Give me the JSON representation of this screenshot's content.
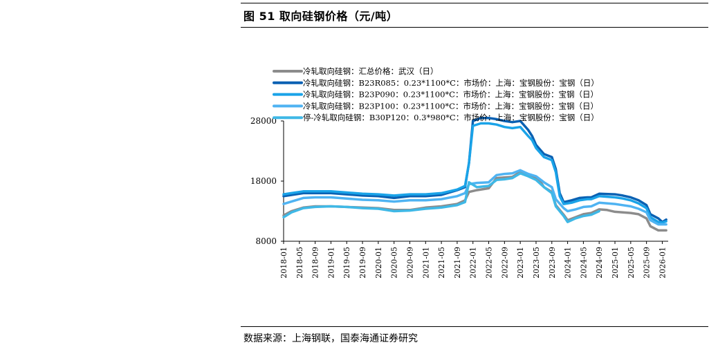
{
  "figure_title": "图 51 取向硅钢价格（元/吨）",
  "source_note": "数据来源：上海钢联，国泰海通证券研究",
  "colors": {
    "gray": "#8c8c8c",
    "darkblue": "#0a61b3",
    "blue": "#1aa3e8",
    "lightblue": "#4fb3f2",
    "skyblue": "#3fb8e6"
  },
  "chart_data": {
    "type": "line",
    "x_tick_labels": [
      "2018-01",
      "2018-05",
      "2018-09",
      "2019-01",
      "2019-05",
      "2019-09",
      "2020-01",
      "2020-05",
      "2020-09",
      "2021-01",
      "2021-05",
      "2021-09",
      "2022-01",
      "2022-05",
      "2022-09",
      "2023-01",
      "2023-05",
      "2023-09",
      "2024-01",
      "2024-05",
      "2024-09",
      "2025-01",
      "2025-05",
      "2025-09",
      "2026-01"
    ],
    "y_ticks": [
      8000,
      18000,
      28000
    ],
    "ylim": [
      8000,
      28000
    ],
    "legend_position": "top-left",
    "grid": false,
    "series": [
      {
        "name": "冷轧取向硅钢：汇总价格：武汉（日）",
        "color_key": "gray",
        "points": [
          [
            "2018-01",
            12300
          ],
          [
            "2018-03",
            13000
          ],
          [
            "2018-06",
            13600
          ],
          [
            "2018-09",
            13800
          ],
          [
            "2019-01",
            13800
          ],
          [
            "2019-05",
            13700
          ],
          [
            "2019-09",
            13600
          ],
          [
            "2020-01",
            13500
          ],
          [
            "2020-05",
            13200
          ],
          [
            "2020-09",
            13200
          ],
          [
            "2021-01",
            13600
          ],
          [
            "2021-05",
            13800
          ],
          [
            "2021-09",
            14200
          ],
          [
            "2021-11",
            14800
          ],
          [
            "2021-12",
            16200
          ],
          [
            "2022-02",
            16500
          ],
          [
            "2022-05",
            16800
          ],
          [
            "2022-07",
            18500
          ],
          [
            "2022-09",
            18600
          ],
          [
            "2022-11",
            18700
          ],
          [
            "2023-01",
            19500
          ],
          [
            "2023-03",
            19000
          ],
          [
            "2023-05",
            18500
          ],
          [
            "2023-06",
            18000
          ],
          [
            "2023-07",
            17000
          ],
          [
            "2023-09",
            16200
          ],
          [
            "2023-10",
            14000
          ],
          [
            "2023-12",
            12400
          ],
          [
            "2024-01",
            11500
          ],
          [
            "2024-03",
            12000
          ],
          [
            "2024-05",
            12500
          ],
          [
            "2024-07",
            12700
          ],
          [
            "2024-09",
            13300
          ],
          [
            "2024-11",
            13200
          ],
          [
            "2025-01",
            12900
          ],
          [
            "2025-03",
            12800
          ],
          [
            "2025-05",
            12700
          ],
          [
            "2025-07",
            12500
          ],
          [
            "2025-09",
            11800
          ],
          [
            "2025-10",
            10500
          ],
          [
            "2025-12",
            9800
          ],
          [
            "2026-02",
            9800
          ]
        ]
      },
      {
        "name": "冷轧取向硅钢：B23R085：0.23*1100*C：市场价：上海：宝钢股份：宝钢（日）",
        "color_key": "darkblue",
        "points": [
          [
            "2018-01",
            15500
          ],
          [
            "2018-03",
            15700
          ],
          [
            "2018-06",
            16000
          ],
          [
            "2018-09",
            16000
          ],
          [
            "2019-01",
            16000
          ],
          [
            "2019-05",
            15800
          ],
          [
            "2019-09",
            15600
          ],
          [
            "2020-01",
            15500
          ],
          [
            "2020-05",
            15200
          ],
          [
            "2020-09",
            15500
          ],
          [
            "2021-01",
            15500
          ],
          [
            "2021-05",
            15700
          ],
          [
            "2021-09",
            16500
          ],
          [
            "2021-11",
            17000
          ],
          [
            "2021-12",
            21000
          ],
          [
            "2022-01",
            28000
          ],
          [
            "2022-03",
            28500
          ],
          [
            "2022-05",
            28500
          ],
          [
            "2022-07",
            28300
          ],
          [
            "2022-09",
            28000
          ],
          [
            "2022-11",
            27800
          ],
          [
            "2023-01",
            28000
          ],
          [
            "2023-03",
            26500
          ],
          [
            "2023-04",
            25500
          ],
          [
            "2023-05",
            24000
          ],
          [
            "2023-07",
            22500
          ],
          [
            "2023-09",
            22000
          ],
          [
            "2023-10",
            20000
          ],
          [
            "2023-11",
            16000
          ],
          [
            "2023-12",
            14500
          ],
          [
            "2024-02",
            14800
          ],
          [
            "2024-04",
            15200
          ],
          [
            "2024-06",
            15300
          ],
          [
            "2024-07",
            15300
          ],
          [
            "2024-09",
            15900
          ],
          [
            "2025-01",
            15800
          ],
          [
            "2025-03",
            15600
          ],
          [
            "2025-05",
            15300
          ],
          [
            "2025-07",
            14800
          ],
          [
            "2025-09",
            14000
          ],
          [
            "2025-10",
            12500
          ],
          [
            "2025-12",
            11800
          ],
          [
            "2026-01",
            11200
          ],
          [
            "2026-02",
            11600
          ]
        ]
      },
      {
        "name": "冷轧取向硅钢：B23P090：0.23*1100*C：市场价：上海：宝钢股份：宝钢（日）",
        "color_key": "blue",
        "points": [
          [
            "2018-01",
            15800
          ],
          [
            "2018-03",
            16000
          ],
          [
            "2018-06",
            16300
          ],
          [
            "2018-09",
            16300
          ],
          [
            "2019-01",
            16300
          ],
          [
            "2019-05",
            16100
          ],
          [
            "2019-09",
            15900
          ],
          [
            "2020-01",
            15800
          ],
          [
            "2020-05",
            15600
          ],
          [
            "2020-09",
            15800
          ],
          [
            "2021-01",
            15800
          ],
          [
            "2021-05",
            16000
          ],
          [
            "2021-09",
            16600
          ],
          [
            "2021-11",
            17200
          ],
          [
            "2021-12",
            21000
          ],
          [
            "2022-01",
            27200
          ],
          [
            "2022-03",
            27600
          ],
          [
            "2022-05",
            27600
          ],
          [
            "2022-07",
            27400
          ],
          [
            "2022-09",
            27000
          ],
          [
            "2022-11",
            26800
          ],
          [
            "2023-01",
            27000
          ],
          [
            "2023-03",
            25500
          ],
          [
            "2023-04",
            24800
          ],
          [
            "2023-05",
            23500
          ],
          [
            "2023-07",
            22000
          ],
          [
            "2023-09",
            21500
          ],
          [
            "2023-10",
            19500
          ],
          [
            "2023-11",
            15500
          ],
          [
            "2023-12",
            14200
          ],
          [
            "2024-02",
            14400
          ],
          [
            "2024-04",
            14800
          ],
          [
            "2024-06",
            15000
          ],
          [
            "2024-07",
            15000
          ],
          [
            "2024-09",
            15500
          ],
          [
            "2025-01",
            15300
          ],
          [
            "2025-03",
            15100
          ],
          [
            "2025-05",
            14800
          ],
          [
            "2025-07",
            14300
          ],
          [
            "2025-09",
            13500
          ],
          [
            "2025-10",
            12000
          ],
          [
            "2025-12",
            11200
          ],
          [
            "2026-01",
            11100
          ],
          [
            "2026-02",
            11300
          ]
        ]
      },
      {
        "name": "冷轧取向硅钢：B23P100：0.23*1100*C：市场价：上海：宝钢股份：宝钢（日）",
        "color_key": "lightblue",
        "points": [
          [
            "2018-01",
            14200
          ],
          [
            "2018-03",
            14600
          ],
          [
            "2018-06",
            15200
          ],
          [
            "2018-09",
            15300
          ],
          [
            "2019-01",
            15300
          ],
          [
            "2019-05",
            15100
          ],
          [
            "2019-09",
            14900
          ],
          [
            "2020-01",
            14800
          ],
          [
            "2020-05",
            14600
          ],
          [
            "2020-09",
            14800
          ],
          [
            "2021-01",
            14800
          ],
          [
            "2021-05",
            15000
          ],
          [
            "2021-09",
            15500
          ],
          [
            "2021-11",
            16000
          ],
          [
            "2021-12",
            17500
          ],
          [
            "2022-02",
            17700
          ],
          [
            "2022-05",
            17800
          ],
          [
            "2022-07",
            19000
          ],
          [
            "2022-09",
            19200
          ],
          [
            "2022-11",
            19300
          ],
          [
            "2023-01",
            19800
          ],
          [
            "2023-03",
            19200
          ],
          [
            "2023-05",
            18800
          ],
          [
            "2023-07",
            17800
          ],
          [
            "2023-09",
            17000
          ],
          [
            "2023-10",
            15000
          ],
          [
            "2023-12",
            13500
          ],
          [
            "2024-01",
            13000
          ],
          [
            "2024-03",
            13300
          ],
          [
            "2024-05",
            13700
          ],
          [
            "2024-07",
            13800
          ],
          [
            "2024-09",
            14400
          ],
          [
            "2025-01",
            14200
          ],
          [
            "2025-03",
            14000
          ],
          [
            "2025-05",
            13800
          ],
          [
            "2025-07",
            13400
          ],
          [
            "2025-09",
            12800
          ],
          [
            "2025-10",
            11500
          ],
          [
            "2025-12",
            10800
          ],
          [
            "2026-02",
            10800
          ]
        ]
      },
      {
        "name": "停-冷轧取向硅钢：B30P120：0.3*980*C：市场价：上海：宝钢股份：宝钢（日）",
        "color_key": "skyblue",
        "points": [
          [
            "2018-01",
            12000
          ],
          [
            "2018-03",
            12800
          ],
          [
            "2018-06",
            13500
          ],
          [
            "2018-09",
            13700
          ],
          [
            "2019-01",
            13800
          ],
          [
            "2019-05",
            13700
          ],
          [
            "2019-09",
            13500
          ],
          [
            "2020-01",
            13400
          ],
          [
            "2020-05",
            13000
          ],
          [
            "2020-09",
            13100
          ],
          [
            "2021-01",
            13400
          ],
          [
            "2021-05",
            13600
          ],
          [
            "2021-09",
            14000
          ],
          [
            "2021-11",
            14500
          ],
          [
            "2021-12",
            17800
          ],
          [
            "2022-02",
            17000
          ],
          [
            "2022-05",
            17200
          ],
          [
            "2022-07",
            18200
          ],
          [
            "2022-09",
            18300
          ],
          [
            "2022-11",
            18500
          ],
          [
            "2023-01",
            19300
          ],
          [
            "2023-03",
            18800
          ],
          [
            "2023-05",
            18200
          ],
          [
            "2023-07",
            17000
          ],
          [
            "2023-09",
            16000
          ],
          [
            "2023-10",
            13800
          ],
          [
            "2023-12",
            12200
          ],
          [
            "2024-01",
            11200
          ],
          [
            "2024-03",
            11800
          ],
          [
            "2024-05",
            12200
          ],
          [
            "2024-07",
            12400
          ],
          [
            "2024-09",
            13000
          ]
        ]
      }
    ]
  }
}
